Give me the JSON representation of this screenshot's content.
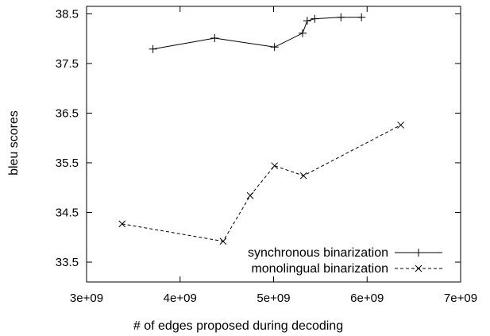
{
  "chart_data": {
    "type": "line",
    "title": "",
    "xlabel": "# of edges proposed during decoding",
    "ylabel": "bleu scores",
    "xlim": [
      3000000000,
      7000000000
    ],
    "ylim": [
      33.1,
      38.65
    ],
    "x_ticks": [
      {
        "value": 3000000000,
        "label": "3e+09"
      },
      {
        "value": 4000000000,
        "label": "4e+09"
      },
      {
        "value": 5000000000,
        "label": "5e+09"
      },
      {
        "value": 6000000000,
        "label": "6e+09"
      },
      {
        "value": 7000000000,
        "label": "7e+09"
      }
    ],
    "y_ticks": [
      {
        "value": 33.5,
        "label": "33.5"
      },
      {
        "value": 34.5,
        "label": "34.5"
      },
      {
        "value": 35.5,
        "label": "35.5"
      },
      {
        "value": 36.5,
        "label": "36.5"
      },
      {
        "value": 37.5,
        "label": "37.5"
      },
      {
        "value": 38.5,
        "label": "38.5"
      }
    ],
    "grid": false,
    "legend_position": "bottom-right",
    "series": [
      {
        "name": "synchronous binarization",
        "line_style": "solid",
        "marker": "plus",
        "color": "#000000",
        "points": [
          [
            3710000000,
            37.79
          ],
          [
            4370000000,
            38.01
          ],
          [
            5010000000,
            37.83
          ],
          [
            5310000000,
            38.11
          ],
          [
            5360000000,
            38.36
          ],
          [
            5440000000,
            38.4
          ],
          [
            5720000000,
            38.43
          ],
          [
            5940000000,
            38.43
          ]
        ]
      },
      {
        "name": "monolingual binarization",
        "line_style": "dashed",
        "marker": "x",
        "color": "#000000",
        "points": [
          [
            3380000000,
            34.27
          ],
          [
            4460000000,
            33.92
          ],
          [
            4750000000,
            34.84
          ],
          [
            5010000000,
            35.44
          ],
          [
            5320000000,
            35.24
          ],
          [
            6360000000,
            36.26
          ]
        ]
      }
    ]
  }
}
